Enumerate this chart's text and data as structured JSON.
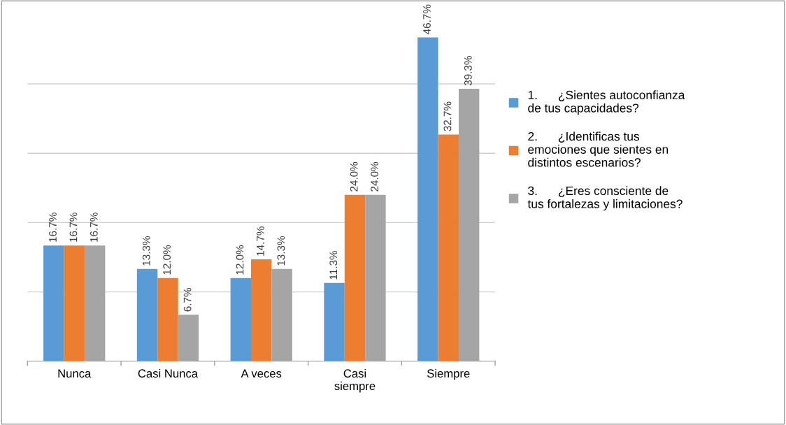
{
  "chart_data": {
    "type": "bar",
    "categories": [
      "Nunca",
      "Casi Nunca",
      "A veces",
      "Casi siempre",
      "Siempre"
    ],
    "series": [
      {
        "name": "1.      ¿Sientes autoconfianza de tus capacidades?",
        "color": "#5b9bd5",
        "values": [
          16.7,
          13.3,
          12.0,
          11.3,
          46.7
        ],
        "value_labels": [
          "16.7%",
          "13.3%",
          "12.0%",
          "11.3%",
          "46.7%"
        ]
      },
      {
        "name": "2.      ¿Identificas tus emociones que sientes en distintos escenarios?",
        "color": "#ed7d31",
        "values": [
          16.7,
          12.0,
          14.7,
          24.0,
          32.7
        ],
        "value_labels": [
          "16.7%",
          "12.0%",
          "14.7%",
          "24.0%",
          "32.7%"
        ]
      },
      {
        "name": "3.      ¿Eres consciente de tus fortalezas y limitaciones?",
        "color": "#a5a5a5",
        "values": [
          16.7,
          6.7,
          13.3,
          24.0,
          39.3
        ],
        "value_labels": [
          "16.7%",
          "6.7%",
          "13.3%",
          "24.0%",
          "39.3%"
        ]
      }
    ],
    "tick_labels": "x",
    "grid": "y",
    "legend": "right"
  }
}
